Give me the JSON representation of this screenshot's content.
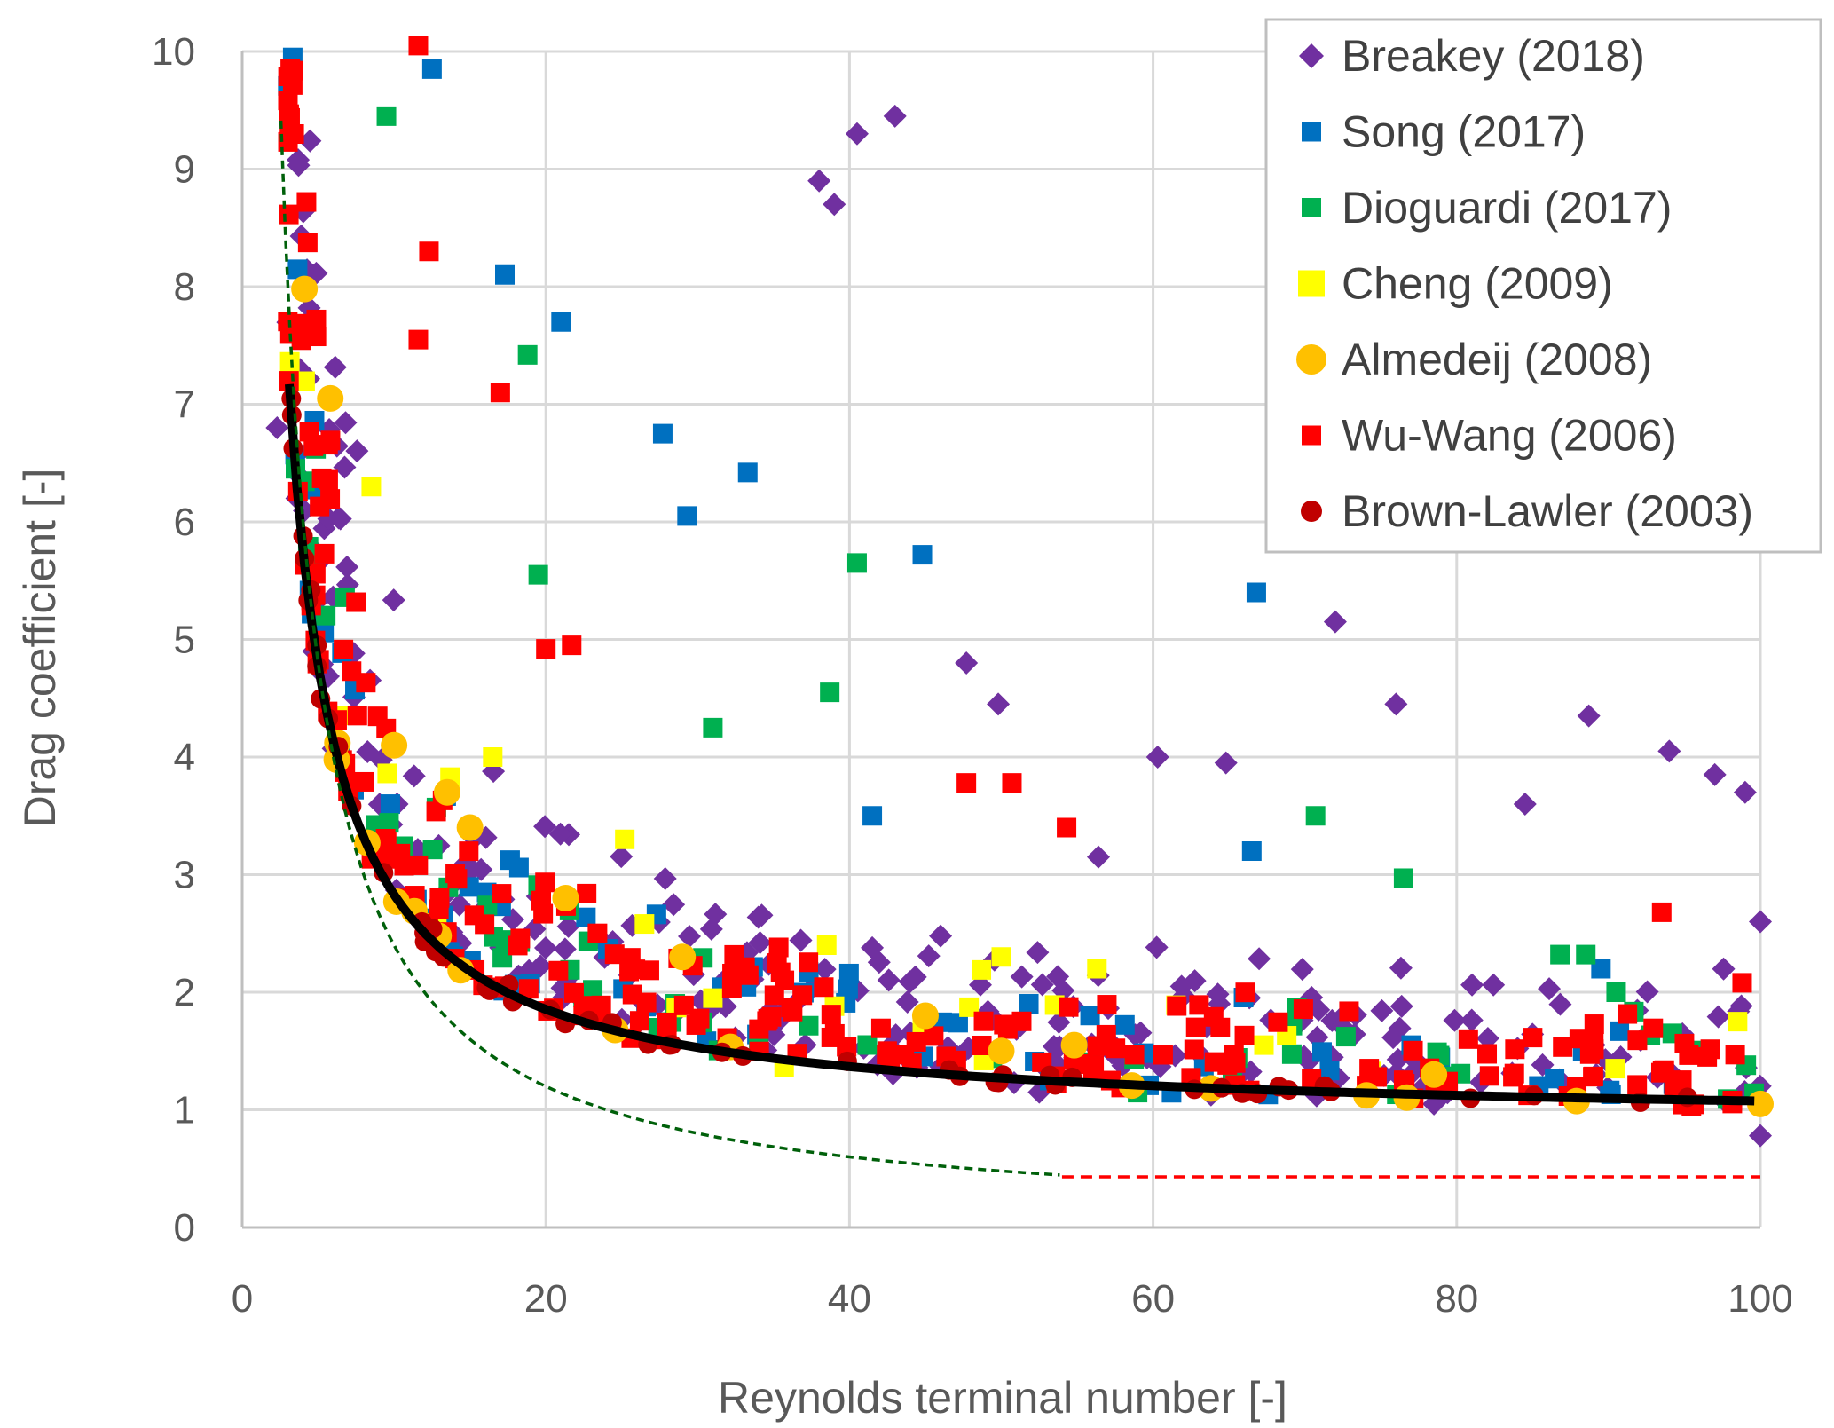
{
  "chart_data": {
    "type": "scatter",
    "xlabel": "Reynolds terminal number  [-]",
    "ylabel": "Drag coefficient [-]",
    "xlim": [
      0,
      100
    ],
    "ylim": [
      0,
      10
    ],
    "x_ticks": [
      "0",
      "20",
      "40",
      "60",
      "80",
      "100"
    ],
    "y_ticks": [
      "0",
      "1",
      "2",
      "3",
      "4",
      "5",
      "6",
      "7",
      "8",
      "9",
      "10"
    ],
    "grid": true,
    "legend_position": "top-right",
    "series": [
      {
        "name": "Breakey (2018)",
        "marker": "diamond",
        "color": "#7030a0",
        "seed": 11,
        "count": 260,
        "points": [
          [
            2.3,
            6.8
          ],
          [
            3.6,
            6.2
          ],
          [
            4.7,
            4.9
          ],
          [
            10.2,
            3.6
          ],
          [
            38,
            8.9
          ],
          [
            39,
            8.7
          ],
          [
            40.5,
            9.3
          ],
          [
            43,
            9.45
          ],
          [
            72,
            5.15
          ],
          [
            76,
            4.45
          ],
          [
            88.7,
            4.35
          ],
          [
            94,
            4.05
          ],
          [
            97,
            3.85
          ],
          [
            99,
            3.7
          ],
          [
            100,
            2.6
          ],
          [
            100,
            0.78
          ],
          [
            52.5,
            1.15
          ],
          [
            78.5,
            1.05
          ],
          [
            47.7,
            4.8
          ],
          [
            49.8,
            4.45
          ],
          [
            60.3,
            4.0
          ],
          [
            64.8,
            3.95
          ],
          [
            84.5,
            3.6
          ],
          [
            56.4,
            3.15
          ]
        ]
      },
      {
        "name": "Song (2017)",
        "marker": "square",
        "color": "#0070c0",
        "seed": 23,
        "count": 70,
        "points": [
          [
            12.5,
            9.85
          ],
          [
            17.3,
            8.1
          ],
          [
            21,
            7.7
          ],
          [
            27.7,
            6.75
          ],
          [
            29.3,
            6.05
          ],
          [
            33.3,
            6.42
          ],
          [
            44.8,
            5.72
          ],
          [
            41.5,
            3.5
          ],
          [
            66.8,
            5.4
          ],
          [
            66.5,
            3.2
          ],
          [
            88.3,
            1.5
          ],
          [
            77,
            1.55
          ],
          [
            89.5,
            2.2
          ]
        ]
      },
      {
        "name": "Dioguardi (2017)",
        "marker": "square",
        "color": "#00b050",
        "seed": 37,
        "count": 55,
        "points": [
          [
            9.5,
            9.45
          ],
          [
            18.8,
            7.42
          ],
          [
            19.5,
            5.55
          ],
          [
            31,
            4.25
          ],
          [
            38.7,
            4.55
          ],
          [
            40.5,
            5.65
          ],
          [
            70.7,
            3.5
          ],
          [
            76.5,
            2.97
          ],
          [
            86.8,
            2.32
          ],
          [
            88.5,
            2.32
          ],
          [
            90.5,
            2.0
          ],
          [
            94.2,
            1.65
          ]
        ]
      },
      {
        "name": "Cheng (2009)",
        "marker": "square",
        "color": "#ffff00",
        "seed": 41,
        "count": 18,
        "points": [
          [
            8.5,
            6.3
          ],
          [
            16.5,
            4.0
          ],
          [
            25.2,
            3.3
          ],
          [
            31,
            1.95
          ],
          [
            38.5,
            2.4
          ],
          [
            44.8,
            1.7
          ],
          [
            50,
            2.3
          ],
          [
            56.3,
            2.2
          ],
          [
            67.3,
            1.55
          ],
          [
            68.8,
            1.63
          ],
          [
            98.5,
            1.75
          ]
        ]
      },
      {
        "name": "Almedeij (2008)",
        "marker": "circle",
        "color": "#ffc000",
        "seed": 53,
        "count": 14,
        "points": [
          [
            4.1,
            7.98
          ],
          [
            5.8,
            7.05
          ],
          [
            10,
            4.1
          ],
          [
            13.5,
            3.7
          ],
          [
            15,
            3.4
          ],
          [
            21.3,
            2.8
          ],
          [
            29,
            2.3
          ],
          [
            45,
            1.8
          ],
          [
            50,
            1.5
          ],
          [
            54.8,
            1.55
          ],
          [
            78.5,
            1.3
          ],
          [
            100,
            1.05
          ]
        ]
      },
      {
        "name": "Wu-Wang (2006)",
        "marker": "square",
        "color": "#ff0000",
        "seed": 67,
        "count": 240,
        "points": [
          [
            11.6,
            10.05
          ],
          [
            12.3,
            8.3
          ],
          [
            11.6,
            7.55
          ],
          [
            17,
            7.1
          ],
          [
            20,
            4.92
          ],
          [
            21.7,
            4.95
          ],
          [
            47.7,
            3.78
          ],
          [
            50.7,
            3.78
          ],
          [
            54.3,
            3.4
          ],
          [
            93.5,
            2.68
          ],
          [
            98.8,
            2.08
          ],
          [
            96.5,
            1.45
          ]
        ]
      },
      {
        "name": "Brown-Lawler (2003)",
        "marker": "circle",
        "color": "#c00000",
        "seed": 79,
        "count": 55,
        "points": []
      }
    ],
    "lines": [
      {
        "name": "fit curve",
        "color": "#000000",
        "style": "solid"
      },
      {
        "name": "Stokes limit",
        "color": "#00600a",
        "style": "dashed"
      },
      {
        "name": "Newton regime",
        "color": "#ff0000",
        "style": "dashed",
        "x": [
          54,
          100
        ],
        "y": [
          0.43,
          0.43
        ]
      }
    ]
  }
}
